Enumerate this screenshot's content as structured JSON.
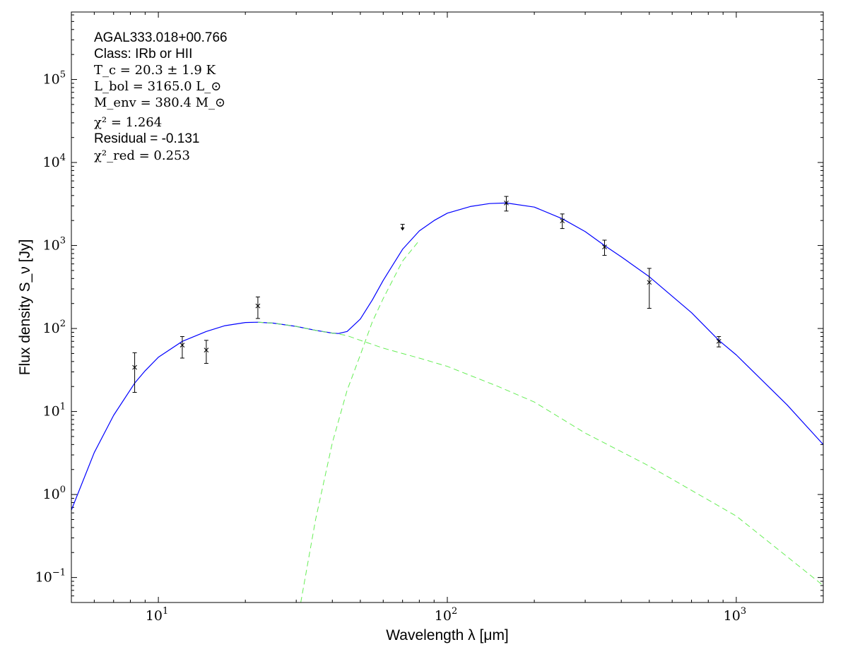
{
  "chart_data": {
    "type": "scatter",
    "title": "",
    "xlabel": "Wavelength λ [μm]",
    "ylabel": "Flux density S_ν [Jy]",
    "xscale": "log",
    "yscale": "log",
    "xlim": [
      5,
      2000
    ],
    "ylim": [
      0.05,
      650000
    ],
    "grid": false,
    "x_ticks": [
      {
        "base": "10",
        "exp": "1",
        "value": 10
      },
      {
        "base": "10",
        "exp": "2",
        "value": 100
      },
      {
        "base": "10",
        "exp": "3",
        "value": 1000
      }
    ],
    "y_ticks": [
      {
        "base": "10",
        "exp": "−1",
        "value": 0.1
      },
      {
        "base": "10",
        "exp": "0",
        "value": 1
      },
      {
        "base": "10",
        "exp": "1",
        "value": 10
      },
      {
        "base": "10",
        "exp": "2",
        "value": 100
      },
      {
        "base": "10",
        "exp": "3",
        "value": 1000
      },
      {
        "base": "10",
        "exp": "4",
        "value": 10000
      },
      {
        "base": "10",
        "exp": "5",
        "value": 100000
      }
    ],
    "annotations": {
      "source": "AGAL333.018+00.766",
      "class": "Class: IRb or HII",
      "tc": "T_c = 20.3 ± 1.9 K",
      "lbol": "L_bol = 3165.0 L_⊙",
      "menv": "M_env = 380.4 M_⊙",
      "chi2": "χ² = 1.264",
      "residual": "Residual = -0.131",
      "chi2red": "χ²_red = 0.253"
    },
    "measurements": [
      {
        "x": 8.28,
        "y": 34,
        "err_lo": 17,
        "err_hi": 51
      },
      {
        "x": 12.1,
        "y": 63,
        "err_lo": 44,
        "err_hi": 80
      },
      {
        "x": 14.65,
        "y": 55,
        "err_lo": 38,
        "err_hi": 72
      },
      {
        "x": 22.1,
        "y": 187,
        "err_lo": 132,
        "err_hi": 240
      },
      {
        "x": 160,
        "y": 3250,
        "err_lo": 2600,
        "err_hi": 3900
      },
      {
        "x": 250,
        "y": 1980,
        "err_lo": 1600,
        "err_hi": 2400
      },
      {
        "x": 350,
        "y": 960,
        "err_lo": 760,
        "err_hi": 1160
      },
      {
        "x": 500,
        "y": 360,
        "err_lo": 175,
        "err_hi": 530
      },
      {
        "x": 870,
        "y": 70,
        "err_lo": 60,
        "err_hi": 80
      }
    ],
    "upper_limits": [
      {
        "x": 70,
        "y": 1800,
        "y_arrow": 1550
      }
    ],
    "series": [
      {
        "style": "solid",
        "color": "#0000ff",
        "x": [
          5,
          6,
          7,
          8.28,
          9,
          10,
          12.1,
          14.65,
          17,
          20,
          22.1,
          25,
          30,
          35,
          40,
          42,
          45,
          50,
          55,
          60,
          70,
          80,
          90,
          100,
          120,
          140,
          160,
          200,
          250,
          300,
          350,
          400,
          500,
          700,
          870,
          1000,
          1500,
          2000
        ],
        "y": [
          0.65,
          3.2,
          9,
          22,
          31,
          45,
          70,
          92,
          108,
          118,
          119,
          116,
          106,
          95,
          88,
          87,
          92,
          130,
          220,
          380,
          900,
          1500,
          2000,
          2450,
          2950,
          3200,
          3250,
          2900,
          2100,
          1470,
          1000,
          730,
          420,
          155,
          72,
          48,
          12,
          4
        ]
      },
      {
        "style": "dashed",
        "color": "#66ee55",
        "x": [
          22.1,
          25,
          30,
          35,
          40,
          42,
          45,
          50,
          60,
          70,
          80,
          100,
          150,
          200,
          300,
          500,
          1000,
          2000
        ],
        "y": [
          119,
          116,
          106,
          95,
          88,
          86,
          82,
          72,
          58,
          50,
          44,
          35,
          20,
          13,
          5.5,
          2.2,
          0.55,
          0.08
        ]
      },
      {
        "style": "dashed",
        "color": "#66ee55",
        "x": [
          31.1,
          35,
          40,
          45,
          50,
          55,
          60,
          70,
          80
        ],
        "y": [
          0.05,
          0.5,
          4.2,
          18,
          48,
          120,
          230,
          650,
          1150
        ]
      }
    ]
  }
}
